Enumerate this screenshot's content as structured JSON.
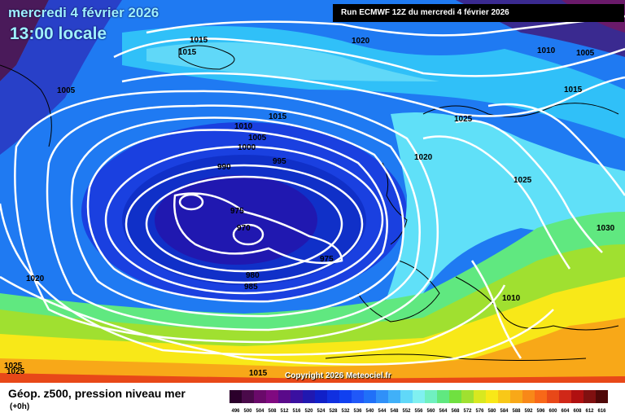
{
  "header": {
    "date_title": "mercredi 4 février 2026",
    "time_title": "13:00 locale",
    "run_info": "Run ECMWF 12Z du mercredi 4 février 2026"
  },
  "copyright": "Copyright 2026 Meteociel.fr",
  "footer": {
    "field_name": "Géop. z500, pression niveau mer",
    "lead_time": "(+0h)"
  },
  "isobar_labels": [
    "1015",
    "1015",
    "1020",
    "1010",
    "1005",
    "1005",
    "1015",
    "1010",
    "1005",
    "1000",
    "995",
    "990",
    "975",
    "970",
    "975",
    "980",
    "985",
    "1025",
    "1020",
    "1025",
    "1015",
    "1030",
    "1020",
    "1010",
    "1025",
    "1025",
    "1015"
  ],
  "colorbar": {
    "ticks": [
      "496",
      "500",
      "504",
      "508",
      "512",
      "516",
      "520",
      "524",
      "528",
      "532",
      "536",
      "540",
      "544",
      "548",
      "552",
      "556",
      "560",
      "564",
      "568",
      "572",
      "576",
      "580",
      "584",
      "588",
      "592",
      "596",
      "600",
      "604",
      "608",
      "612",
      "616"
    ],
    "colors": [
      "#2b002b",
      "#4a0a4a",
      "#6a0a6a",
      "#800a80",
      "#5a0a8a",
      "#3a10a0",
      "#2018b0",
      "#1020c8",
      "#1030e0",
      "#1040f0",
      "#2058f8",
      "#2070f8",
      "#3090f8",
      "#40b0f8",
      "#60d8f8",
      "#80f0f0",
      "#70f0c0",
      "#60e880",
      "#70e040",
      "#a0e030",
      "#d8e820",
      "#f8e818",
      "#f8c818",
      "#f8a818",
      "#f88818",
      "#f86818",
      "#e84818",
      "#d02818",
      "#b01010",
      "#801010",
      "#500808"
    ]
  },
  "colors": {
    "title_cyan": "#9ff0ff",
    "isobar": "#ffffff",
    "coast": "#000000"
  }
}
